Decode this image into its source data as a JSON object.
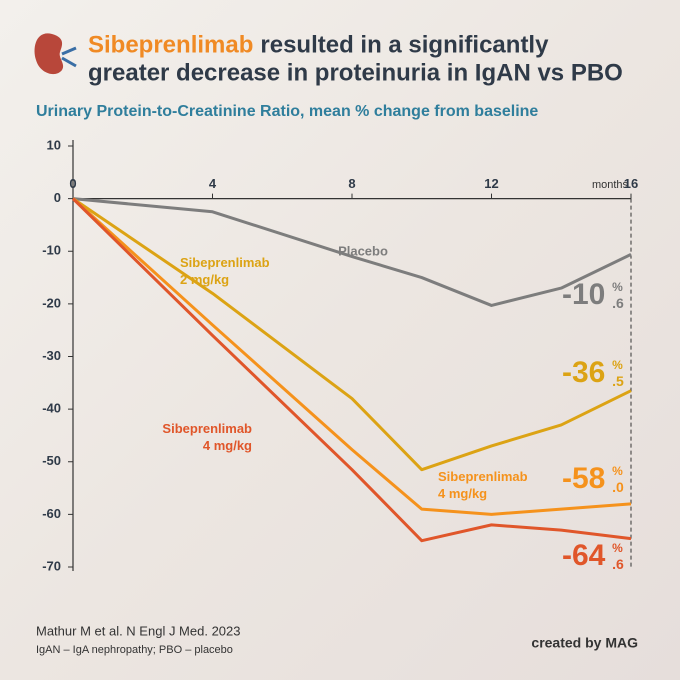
{
  "chart_data": {
    "type": "line",
    "title": [
      "Sibeprenlimab",
      "resulted in a significantly",
      "greater decrease in proteinuria in IgAN vs PBO"
    ],
    "subtitle": "Urinary Protein-to-Creatinine Ratio, mean % change from baseline",
    "x_label": "months",
    "x": [
      0,
      4,
      8,
      10,
      12,
      14,
      16
    ],
    "xlim": [
      0,
      16
    ],
    "xticks": [
      0,
      4,
      8,
      12,
      16
    ],
    "ylim": [
      -70,
      10
    ],
    "yticks": [
      10,
      0,
      -10,
      -20,
      -30,
      -40,
      -50,
      -60,
      -70
    ],
    "series": [
      {
        "name": "Placebo",
        "color": "#7d7d7d",
        "values": [
          0,
          -2.5,
          -11,
          -15,
          -20.3,
          -17,
          -10.6
        ],
        "value_labels": [
          null,
          null,
          null,
          null,
          null,
          null,
          "-10.6%"
        ]
      },
      {
        "name": "Sibeprenlimab 2 mg/kg",
        "color": "#dca314",
        "values": [
          0,
          -18,
          -38,
          -51.5,
          -47,
          -43,
          -36.5
        ],
        "value_labels": [
          null,
          null,
          null,
          null,
          null,
          null,
          "-36.5%"
        ]
      },
      {
        "name": "Sibeprenlimab 4 mg/kg",
        "color": "#f5921c",
        "values": [
          0,
          -24,
          -47.7,
          -59,
          -60,
          -59,
          -58
        ],
        "value_labels": [
          null,
          null,
          null,
          null,
          null,
          null,
          "-58.0%"
        ]
      },
      {
        "name": "Sibeprenlimab 4 mg/kg",
        "color": "#e0562a",
        "values": [
          0,
          -26,
          -51.5,
          -65,
          -62,
          -63,
          -64.6
        ],
        "value_labels": [
          null,
          null,
          null,
          null,
          null,
          null,
          "-64.6%"
        ]
      }
    ],
    "source": "Mathur M et al. N Engl J Med. 2023",
    "footnote": "IgAN – IgA nephropathy; PBO – placebo",
    "credit": "created by MAG"
  }
}
